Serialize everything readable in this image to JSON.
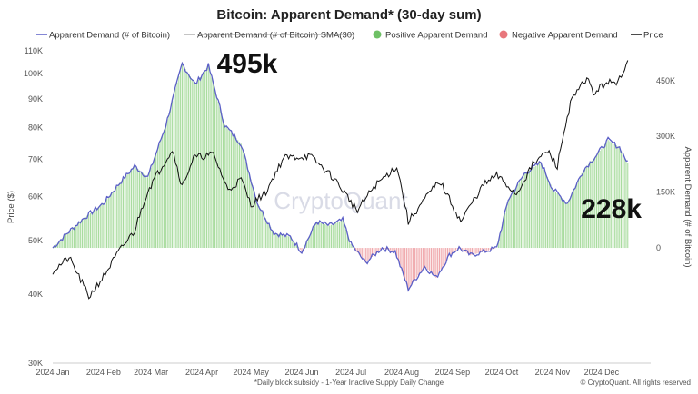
{
  "chart_data": {
    "type": "bar+line",
    "title": "Bitcoin: Apparent Demand* (30-day sum)",
    "legend": [
      {
        "label": "Apparent Demand (# of Bitcoin)",
        "kind": "line",
        "color": "#5b5fc7"
      },
      {
        "label": "Apparent Demand (# of Bitcoin)  SMA(30)",
        "kind": "line-struck",
        "color": "#b0b0b0"
      },
      {
        "label": "Positive Apparent Demand",
        "kind": "dot",
        "color": "#6ec065"
      },
      {
        "label": "Negative Apparent Demand",
        "kind": "dot",
        "color": "#e8777c"
      },
      {
        "label": "Price",
        "kind": "line",
        "color": "#111111"
      }
    ],
    "legend_position": "top",
    "left_axis": {
      "label": "Price ($)",
      "scale": "log",
      "range": [
        30000,
        110000
      ],
      "ticks": [
        {
          "v": 110000,
          "t": "110K"
        },
        {
          "v": 100000,
          "t": "100K"
        },
        {
          "v": 90000,
          "t": "90K"
        },
        {
          "v": 80000,
          "t": "80K"
        },
        {
          "v": 70000,
          "t": "70K"
        },
        {
          "v": 60000,
          "t": "60K"
        },
        {
          "v": 50000,
          "t": "50K"
        },
        {
          "v": 40000,
          "t": "40K"
        },
        {
          "v": 30000,
          "t": "30K"
        }
      ]
    },
    "right_axis": {
      "label": "Apparent Demand (# of Bitcoin)",
      "range": [
        -310000,
        530000
      ],
      "ticks": [
        {
          "v": 450000,
          "t": "450K"
        },
        {
          "v": 300000,
          "t": "300K"
        },
        {
          "v": 150000,
          "t": "150K"
        },
        {
          "v": 0,
          "t": "0"
        }
      ]
    },
    "x_axis": {
      "range": [
        "2024-01-01",
        "2024-12-31"
      ],
      "ticks": [
        "2024 Jan",
        "2024 Feb",
        "2024 Mar",
        "2024 Apr",
        "2024 May",
        "2024 Jun",
        "2024 Jul",
        "2024 Aug",
        "2024 Sep",
        "2024 Oct",
        "2024 Nov",
        "2024 Dec"
      ]
    },
    "price": [
      [
        "2024-01-01",
        44000
      ],
      [
        "2024-01-11",
        46500
      ],
      [
        "2024-01-23",
        39500
      ],
      [
        "2024-02-01",
        43000
      ],
      [
        "2024-02-10",
        47500
      ],
      [
        "2024-02-20",
        52000
      ],
      [
        "2024-02-28",
        61500
      ],
      [
        "2024-03-05",
        66000
      ],
      [
        "2024-03-14",
        73000
      ],
      [
        "2024-03-20",
        62500
      ],
      [
        "2024-03-27",
        70500
      ],
      [
        "2024-04-08",
        71500
      ],
      [
        "2024-04-17",
        61500
      ],
      [
        "2024-04-25",
        64500
      ],
      [
        "2024-05-01",
        58000
      ],
      [
        "2024-05-10",
        61000
      ],
      [
        "2024-05-21",
        70500
      ],
      [
        "2024-06-06",
        71000
      ],
      [
        "2024-06-20",
        65000
      ],
      [
        "2024-07-05",
        56500
      ],
      [
        "2024-07-15",
        62500
      ],
      [
        "2024-07-29",
        68000
      ],
      [
        "2024-08-05",
        54000
      ],
      [
        "2024-08-24",
        64000
      ],
      [
        "2024-09-06",
        54000
      ],
      [
        "2024-09-20",
        63000
      ],
      [
        "2024-09-28",
        65500
      ],
      [
        "2024-10-10",
        60500
      ],
      [
        "2024-10-20",
        68500
      ],
      [
        "2024-10-29",
        72500
      ],
      [
        "2024-11-04",
        68000
      ],
      [
        "2024-11-12",
        88500
      ],
      [
        "2024-11-22",
        98500
      ],
      [
        "2024-11-26",
        92000
      ],
      [
        "2024-12-05",
        97000
      ],
      [
        "2024-12-10",
        95000
      ],
      [
        "2024-12-17",
        106000
      ]
    ],
    "apparent_demand": [
      [
        "2024-01-01",
        0
      ],
      [
        "2024-01-10",
        40000
      ],
      [
        "2024-01-20",
        80000
      ],
      [
        "2024-02-01",
        120000
      ],
      [
        "2024-02-10",
        170000
      ],
      [
        "2024-02-20",
        220000
      ],
      [
        "2024-02-28",
        190000
      ],
      [
        "2024-03-10",
        330000
      ],
      [
        "2024-03-20",
        495000
      ],
      [
        "2024-03-28",
        440000
      ],
      [
        "2024-04-05",
        490000
      ],
      [
        "2024-04-15",
        330000
      ],
      [
        "2024-04-25",
        280000
      ],
      [
        "2024-05-05",
        120000
      ],
      [
        "2024-05-15",
        40000
      ],
      [
        "2024-05-25",
        30000
      ],
      [
        "2024-06-01",
        -10000
      ],
      [
        "2024-06-10",
        70000
      ],
      [
        "2024-06-18",
        60000
      ],
      [
        "2024-06-26",
        75000
      ],
      [
        "2024-07-01",
        10000
      ],
      [
        "2024-07-10",
        -40000
      ],
      [
        "2024-07-20",
        0
      ],
      [
        "2024-07-28",
        -10000
      ],
      [
        "2024-08-05",
        -110000
      ],
      [
        "2024-08-15",
        -50000
      ],
      [
        "2024-08-22",
        -80000
      ],
      [
        "2024-08-30",
        -20000
      ],
      [
        "2024-09-05",
        0
      ],
      [
        "2024-09-12",
        -20000
      ],
      [
        "2024-09-20",
        -10000
      ],
      [
        "2024-09-28",
        0
      ],
      [
        "2024-10-05",
        130000
      ],
      [
        "2024-10-15",
        200000
      ],
      [
        "2024-10-25",
        230000
      ],
      [
        "2024-11-01",
        160000
      ],
      [
        "2024-11-10",
        120000
      ],
      [
        "2024-11-20",
        210000
      ],
      [
        "2024-11-28",
        250000
      ],
      [
        "2024-12-05",
        290000
      ],
      [
        "2024-12-12",
        270000
      ],
      [
        "2024-12-17",
        228000
      ]
    ],
    "annotations": [
      {
        "text": "495k",
        "date": "2024-03-28",
        "value": 495000
      },
      {
        "text": "228k",
        "date": "2024-12-17",
        "value": 228000
      }
    ],
    "grid": false,
    "watermark": "CryptoQuant",
    "footnote": "*Daily block subsidy - 1-Year Inactive Supply Daily Change",
    "credit": "© CryptoQuant. All rights reserved"
  }
}
